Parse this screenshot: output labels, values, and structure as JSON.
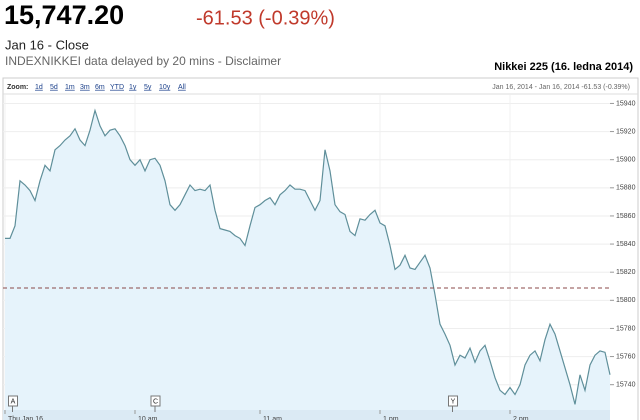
{
  "header": {
    "price": "15,747.20",
    "change": "-61.53 (-0.39%)",
    "date": "Jan 16 - Close",
    "source": "INDEXNIKKEI data delayed by 20 mins - Disclaimer"
  },
  "chart_data": {
    "type": "line",
    "title": "Nikkei 225 (16. ledna 2014)",
    "zoom": {
      "label": "Zoom:",
      "options": [
        "1d",
        "5d",
        "1m",
        "3m",
        "6m",
        "YTD",
        "1y",
        "5y",
        "10y",
        "All"
      ]
    },
    "range_text": "Jan 16, 2014 - Jan 16, 2014 -61.53 (-0.39%)",
    "series": [
      {
        "color": "#5f8f9a",
        "values": [
          15844,
          15844,
          15853,
          15885,
          15882,
          15878,
          15871,
          15885,
          15896,
          15892,
          15907,
          15910,
          15914,
          15917,
          15922,
          15914,
          15910,
          15921,
          15935,
          15924,
          15917,
          15921,
          15922,
          15917,
          15910,
          15900,
          15896,
          15900,
          15892,
          15900,
          15901,
          15896,
          15885,
          15868,
          15864,
          15868,
          15875,
          15882,
          15878,
          15879,
          15878,
          15882,
          15864,
          15851,
          15850,
          15849,
          15846,
          15844,
          15839,
          15853,
          15866,
          15868,
          15871,
          15873,
          15868,
          15875,
          15878,
          15882,
          15879,
          15879,
          15878,
          15871,
          15864,
          15871,
          15907,
          15892,
          15868,
          15863,
          15861,
          15849,
          15846,
          15858,
          15857,
          15861,
          15864,
          15855,
          15853,
          15839,
          15822,
          15825,
          15832,
          15823,
          15822,
          15827,
          15832,
          15823,
          15804,
          15783,
          15776,
          15768,
          15754,
          15761,
          15759,
          15766,
          15756,
          15764,
          15768,
          15757,
          15745,
          15736,
          15733,
          15738,
          15733,
          15740,
          15754,
          15761,
          15764,
          15757,
          15772,
          15783,
          15776,
          15764,
          15752,
          15740,
          15726,
          15747,
          15736,
          15754,
          15761,
          15764,
          15763,
          15747
        ]
      }
    ],
    "fill_color": "#e6f3fb",
    "previous_close": 15808.73,
    "reference_color": "#8b4a4a",
    "xlim": [
      0,
      121
    ],
    "xticks": [
      {
        "value": 0,
        "label": "Thu Jan 16"
      },
      {
        "value": 26,
        "label": "10 am"
      },
      {
        "value": 51,
        "label": "11 am"
      },
      {
        "value": 75,
        "label": "1 pm"
      },
      {
        "value": 101,
        "label": "2 pm"
      }
    ],
    "ylim": [
      15722,
      15946
    ],
    "yticks": [
      15740,
      15760,
      15780,
      15800,
      15820,
      15840,
      15860,
      15880,
      15900,
      15920,
      15940
    ],
    "grid": true,
    "flags": [
      {
        "label": "A",
        "x": 1.5
      },
      {
        "label": "C",
        "x": 30
      },
      {
        "label": "Y",
        "x": 89.5
      }
    ]
  }
}
